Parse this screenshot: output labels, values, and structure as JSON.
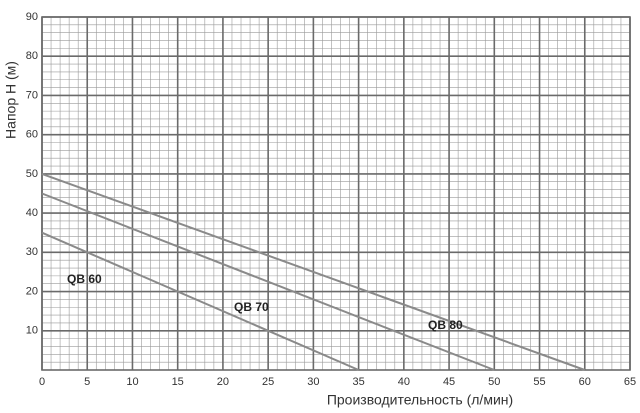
{
  "chart_data": {
    "type": "line",
    "xlabel": "Производительность (л/мин)",
    "ylabel": "Напор H (м)",
    "xlim": [
      0,
      65
    ],
    "ylim": [
      0,
      90
    ],
    "xticks": [
      0,
      5,
      10,
      15,
      20,
      25,
      30,
      35,
      40,
      45,
      50,
      55,
      60,
      65
    ],
    "yticks": [
      10,
      20,
      30,
      40,
      50,
      60,
      70,
      80,
      90
    ],
    "grid": true,
    "series": [
      {
        "name": "QB 60",
        "color": "#8a8a8a",
        "x": [
          0,
          35
        ],
        "values": [
          35,
          0
        ]
      },
      {
        "name": "QB 70",
        "color": "#8a8a8a",
        "x": [
          0,
          50
        ],
        "values": [
          45,
          0
        ]
      },
      {
        "name": "QB 80",
        "color": "#8a8a8a",
        "x": [
          0,
          60
        ],
        "values": [
          50,
          0
        ]
      }
    ]
  }
}
